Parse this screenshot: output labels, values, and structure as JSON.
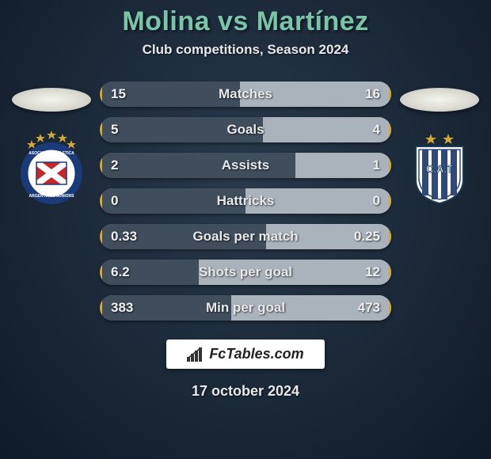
{
  "title": "Molina vs Martínez",
  "subtitle": "Club competitions, Season 2024",
  "colors": {
    "title": "#7ac5a8",
    "text": "#e8e8e8",
    "bar_bg": "#7f8a95",
    "left_fill": "#3f4d5c",
    "right_fill": "#aab3bc",
    "accent_gold": "#d4a935"
  },
  "bar": {
    "height": 32,
    "radius": 16,
    "label_fontsize": 17,
    "value_fontsize": 17
  },
  "stats": [
    {
      "label": "Matches",
      "left_display": "15",
      "right_display": "16",
      "left_pct": 48,
      "right_pct": 52
    },
    {
      "label": "Goals",
      "left_display": "5",
      "right_display": "4",
      "left_pct": 56,
      "right_pct": 44
    },
    {
      "label": "Assists",
      "left_display": "2",
      "right_display": "1",
      "left_pct": 67,
      "right_pct": 33
    },
    {
      "label": "Hattricks",
      "left_display": "0",
      "right_display": "0",
      "left_pct": 50,
      "right_pct": 50
    },
    {
      "label": "Goals per match",
      "left_display": "0.33",
      "right_display": "0.25",
      "left_pct": 57,
      "right_pct": 43
    },
    {
      "label": "Shots per goal",
      "left_display": "6.2",
      "right_display": "12",
      "left_pct": 34,
      "right_pct": 66
    },
    {
      "label": "Min per goal",
      "left_display": "383",
      "right_display": "473",
      "left_pct": 45,
      "right_pct": 55
    }
  ],
  "brand": "FcTables.com",
  "date": "17 october 2024",
  "left_club": {
    "name": "Argentinos Juniors",
    "colors": {
      "primary": "#c62828",
      "secondary": "#ffffff",
      "ring_blue": "#1a3a7a",
      "stars": "#d4a935"
    }
  },
  "right_club": {
    "name": "Talleres",
    "colors": {
      "primary": "#2f4a7a",
      "secondary": "#ffffff",
      "stars": "#d4a935"
    }
  }
}
